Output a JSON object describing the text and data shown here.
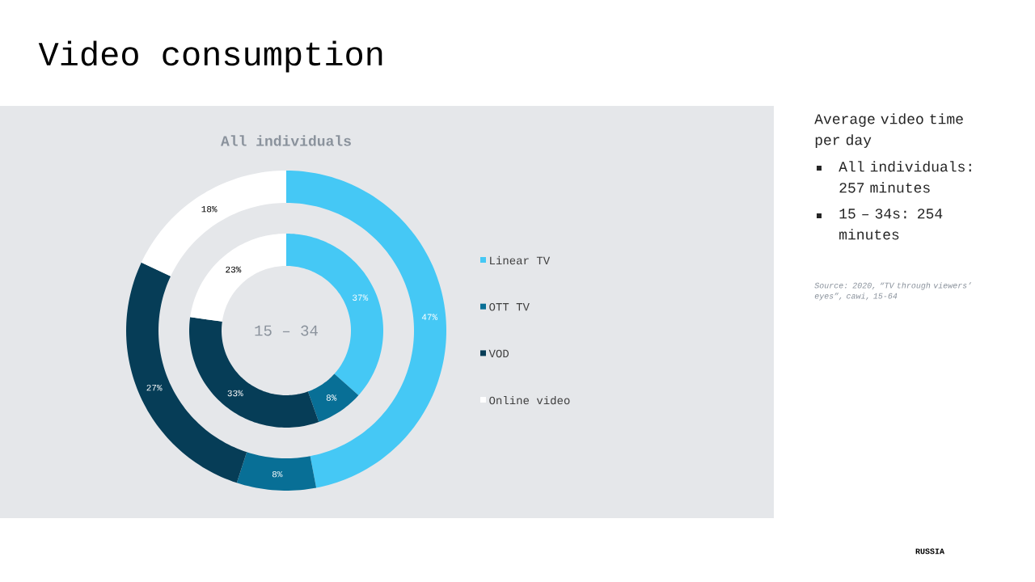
{
  "chart_data": {
    "type": "donut",
    "title": "Video consumption",
    "categories": [
      "Linear TV",
      "OTT TV",
      "VOD",
      "Online video"
    ],
    "colors": [
      "#45c8f5",
      "#086f96",
      "#063d57",
      "#ffffff"
    ],
    "series": [
      {
        "name": "All individuals",
        "values": [
          47,
          8,
          27,
          18
        ],
        "value_labels": [
          "47%",
          "8%",
          "27%",
          "18%"
        ]
      },
      {
        "name": "15 – 34",
        "values": [
          37,
          8,
          33,
          23
        ],
        "value_labels": [
          "37%",
          "8%",
          "33%",
          "23%"
        ]
      }
    ],
    "legend": "right",
    "annotations": [
      "Average video time per day",
      "All individuals: 257 minutes",
      "15 – 34s: 254 minutes",
      "*Source: 2020, “TV through viewers’ eyes”, cawi, 15-64*",
      "RUSSIA"
    ]
  }
}
